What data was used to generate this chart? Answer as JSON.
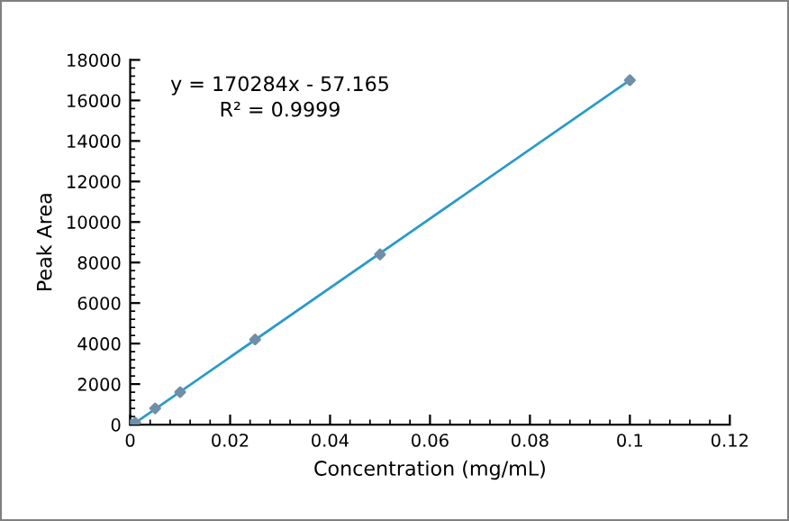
{
  "chart_data": {
    "type": "scatter",
    "xlabel": "Concentration (mg/mL)",
    "ylabel": "Peak Area",
    "annotations": [
      "y = 170284x - 57.165",
      "R² = 0.9999"
    ],
    "series": [
      {
        "color": "#6f8fa8",
        "marker": "diamond",
        "x": [
          0,
          0.0005,
          0.001,
          0.005,
          0.01,
          0.025,
          0.05,
          0.1
        ],
        "values": [
          0,
          0,
          100,
          800,
          1600,
          4200,
          8400,
          17000
        ]
      },
      {
        "type": "line",
        "color": "#2a9ac9",
        "x": [
          0.0005,
          0.1
        ],
        "values": [
          0,
          17000
        ]
      }
    ],
    "xlim": [
      0,
      0.12
    ],
    "xticks": [
      0,
      0.02,
      0.04,
      0.06,
      0.08,
      0.1,
      0.12
    ],
    "ylim": [
      0,
      18000
    ],
    "yticks": [
      0,
      2000,
      4000,
      6000,
      8000,
      10000,
      12000,
      14000,
      16000,
      18000
    ],
    "grid": false,
    "legend": false
  }
}
